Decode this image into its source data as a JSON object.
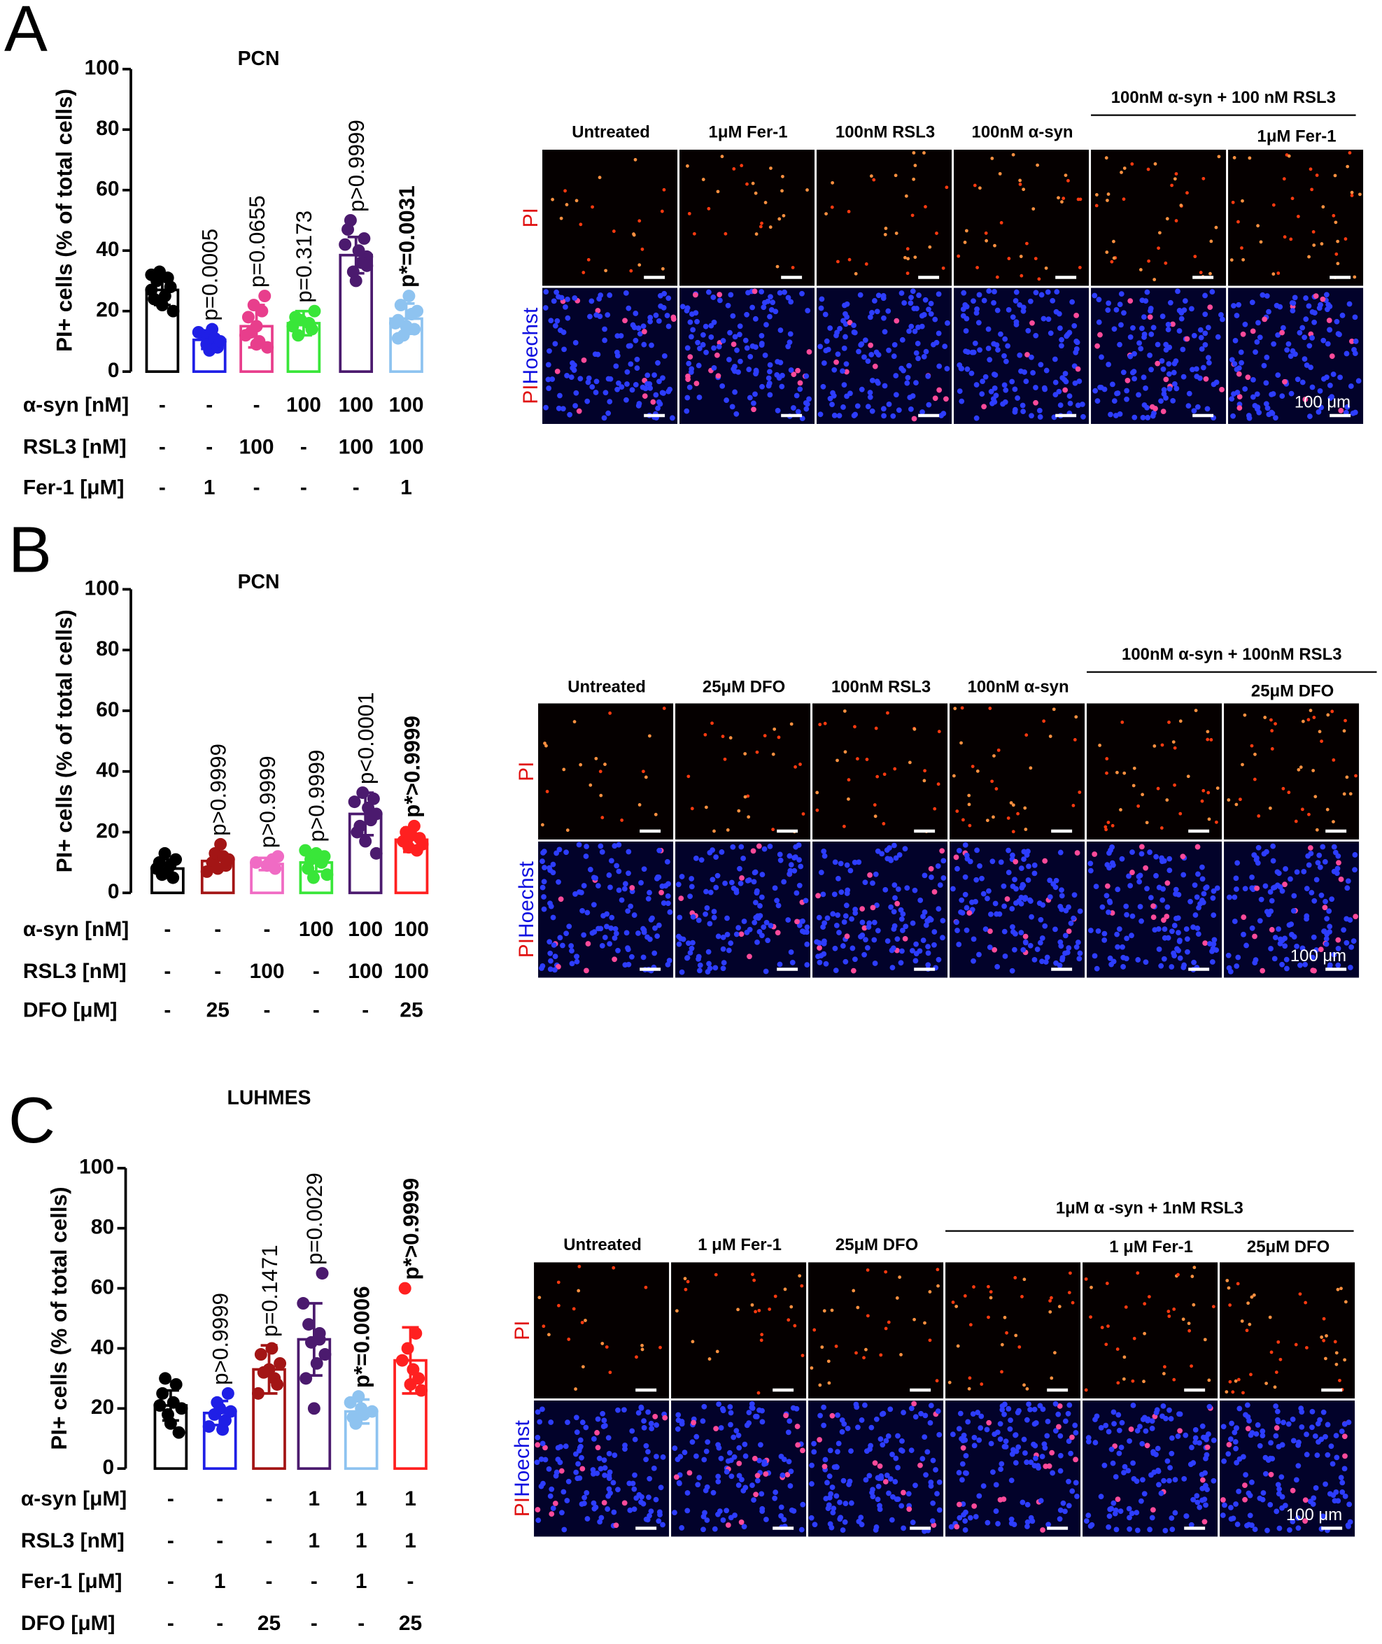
{
  "chart_data": [
    {
      "panel": "A",
      "type": "bar",
      "title": "PCN",
      "ylabel": "PI+ cells (% of total cells)",
      "ylim": [
        0,
        100
      ],
      "yticks": [
        0,
        20,
        40,
        60,
        80,
        100
      ],
      "bars": [
        {
          "color": "#000000",
          "value": 27,
          "error": 5,
          "points": [
            27,
            24,
            30,
            33,
            22,
            25,
            31,
            28,
            20,
            32
          ]
        },
        {
          "color": "#1f1fe6",
          "value": 10.5,
          "error": 3,
          "points": [
            12,
            9,
            7,
            14,
            11,
            8,
            10,
            13
          ],
          "annotation": "p=0.0005",
          "annotation_bold": false
        },
        {
          "color": "#e83e8c",
          "value": 15,
          "error": 7,
          "points": [
            15,
            10,
            20,
            25,
            8,
            12,
            18,
            13,
            22,
            9
          ],
          "annotation": "p=0.0655",
          "annotation_bold": false
        },
        {
          "color": "#39e639",
          "value": 16,
          "error": 4,
          "points": [
            16,
            14,
            20,
            15,
            18,
            12,
            17
          ],
          "annotation": "p=0.3173",
          "annotation_bold": false
        },
        {
          "color": "#4b1a6e",
          "value": 38.5,
          "error": 6,
          "points": [
            38,
            42,
            47,
            50,
            33,
            30,
            40,
            36,
            44,
            35
          ],
          "annotation": "p>0.9999",
          "annotation_bold": false
        },
        {
          "color": "#8ec3f0",
          "value": 17.5,
          "error": 5,
          "points": [
            17,
            22,
            12,
            15,
            25,
            19,
            14,
            20,
            16,
            11
          ],
          "annotation": "p*=0.0031",
          "annotation_bold": true
        }
      ],
      "conditions": [
        {
          "label": "α-syn [nM]",
          "values": [
            "-",
            "-",
            "-",
            "100",
            "100",
            "100"
          ]
        },
        {
          "label": "RSL3 [nM]",
          "values": [
            "-",
            "-",
            "100",
            "-",
            "100",
            "100"
          ]
        },
        {
          "label": "Fer-1 [μM]",
          "values": [
            "-",
            "1",
            "-",
            "-",
            "-",
            "1"
          ]
        }
      ]
    },
    {
      "panel": "B",
      "type": "bar",
      "title": "PCN",
      "ylabel": "PI+ cells (% of total cells)",
      "ylim": [
        0,
        100
      ],
      "yticks": [
        0,
        20,
        40,
        60,
        80,
        100
      ],
      "bars": [
        {
          "color": "#000000",
          "value": 8,
          "error": 3,
          "points": [
            8,
            10,
            6,
            13,
            7,
            9,
            5,
            11
          ]
        },
        {
          "color": "#a31515",
          "value": 10.5,
          "error": 3,
          "points": [
            10,
            13,
            8,
            16,
            12,
            9,
            11,
            7
          ],
          "annotation": "p>0.9999",
          "annotation_bold": false
        },
        {
          "color": "#f06bc4",
          "value": 9.5,
          "error": 2,
          "points": [
            9,
            10,
            11,
            8,
            12,
            10
          ],
          "annotation": "p>0.9999",
          "annotation_bold": false
        },
        {
          "color": "#39e639",
          "value": 10,
          "error": 3,
          "points": [
            10,
            12,
            6,
            14,
            8,
            11,
            5,
            13
          ],
          "annotation": "p>0.9999",
          "annotation_bold": false
        },
        {
          "color": "#4b1a6e",
          "value": 26,
          "error": 7,
          "points": [
            26,
            30,
            20,
            22,
            33,
            17,
            28,
            24,
            31,
            13
          ],
          "annotation": "p<0.0001",
          "annotation_bold": false
        },
        {
          "color": "#ff2020",
          "value": 17.5,
          "error": 4,
          "points": [
            17,
            20,
            15,
            19,
            22,
            14,
            18,
            16
          ],
          "annotation": "p*>0.9999",
          "annotation_bold": true
        }
      ],
      "conditions": [
        {
          "label": "α-syn [nM]",
          "values": [
            "-",
            "-",
            "-",
            "100",
            "100",
            "100"
          ]
        },
        {
          "label": "RSL3 [nM]",
          "values": [
            "-",
            "-",
            "100",
            "-",
            "100",
            "100"
          ]
        },
        {
          "label": "DFO [μM]",
          "values": [
            "-",
            "25",
            "-",
            "-",
            "-",
            "25"
          ]
        }
      ]
    },
    {
      "panel": "C",
      "type": "bar",
      "title": "LUHMES",
      "ylabel": "PI+ cells (% of total cells)",
      "ylim": [
        0,
        100
      ],
      "yticks": [
        0,
        20,
        40,
        60,
        80,
        100
      ],
      "bars": [
        {
          "color": "#000000",
          "value": 21,
          "error": 5,
          "points": [
            21,
            25,
            30,
            18,
            15,
            22,
            28,
            12,
            20
          ]
        },
        {
          "color": "#1f1fe6",
          "value": 18.5,
          "error": 4,
          "points": [
            18,
            22,
            20,
            13,
            16,
            25,
            19,
            14
          ],
          "annotation": "p>0.9999",
          "annotation_bold": false
        },
        {
          "color": "#a31515",
          "value": 33,
          "error": 8,
          "points": [
            33,
            40,
            30,
            28,
            35,
            25,
            38,
            32
          ],
          "annotation": "p=0.1471",
          "annotation_bold": false
        },
        {
          "color": "#4b1a6e",
          "value": 43,
          "error": 12,
          "points": [
            43,
            65,
            38,
            55,
            30,
            48,
            42,
            20,
            35,
            45
          ],
          "annotation": "p=0.0029",
          "annotation_bold": false
        },
        {
          "color": "#8ec3f0",
          "value": 19,
          "error": 4,
          "points": [
            19,
            22,
            17,
            15,
            24,
            20,
            18
          ],
          "annotation": "p*=0.0006",
          "annotation_bold": true
        },
        {
          "color": "#ff2020",
          "value": 36,
          "error": 11,
          "points": [
            36,
            60,
            40,
            28,
            33,
            45,
            30,
            26
          ],
          "annotation": "p*>0.9999",
          "annotation_bold": true
        }
      ],
      "conditions": [
        {
          "label": "α-syn [μM]",
          "values": [
            "-",
            "-",
            "-",
            "1",
            "1",
            "1"
          ]
        },
        {
          "label": "RSL3 [nM]",
          "values": [
            "-",
            "-",
            "-",
            "1",
            "1",
            "1"
          ]
        },
        {
          "label": "Fer-1 [μM]",
          "values": [
            "-",
            "1",
            "-",
            "-",
            "1",
            "-"
          ]
        },
        {
          "label": "DFO [μM]",
          "values": [
            "-",
            "-",
            "25",
            "-",
            "-",
            "25"
          ]
        }
      ]
    }
  ],
  "micrographs": [
    {
      "columns": [
        "Untreated",
        "1μM Fer-1",
        "100nM RSL3",
        "100nM α-syn",
        null,
        "1μM Fer-1"
      ],
      "group_label": "100nM α-syn + 100 nM RSL3",
      "row_labels": [
        [
          "PI"
        ],
        [
          "PI",
          "Hoechst"
        ]
      ],
      "scale_label": "100 μm"
    },
    {
      "columns": [
        "Untreated",
        "25μM DFO",
        "100nM RSL3",
        "100nM α-syn",
        null,
        "25μM DFO"
      ],
      "group_label": "100nM α-syn + 100nM RSL3",
      "row_labels": [
        [
          "PI"
        ],
        [
          "PI",
          "Hoechst"
        ]
      ],
      "scale_label": "100 μm"
    },
    {
      "columns": [
        "Untreated",
        "1 μM Fer-1",
        "25μM DFO",
        null,
        "1 μM Fer-1",
        "25μM DFO"
      ],
      "group_label": "1μM α -syn + 1nM RSL3",
      "row_labels": [
        [
          "PI"
        ],
        [
          "PI",
          "Hoechst"
        ]
      ],
      "scale_label": "100 μm"
    }
  ]
}
